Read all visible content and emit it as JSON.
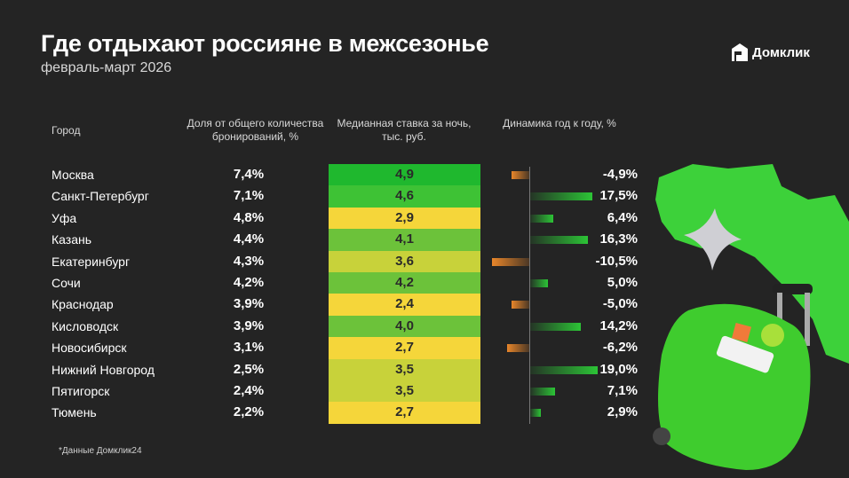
{
  "header": {
    "title": "Где отдыхают россияне в межсезонье",
    "subtitle": "февраль-март 2026",
    "logo": "Домклик"
  },
  "footnote": "*Данные Домклик24",
  "colors": {
    "background": "#242424",
    "positive": "#2cc436",
    "negative": "#e8862a",
    "rate_high": "#1fb82e",
    "rate_low": "#f5d63a"
  },
  "chart_data": {
    "type": "table",
    "columns": [
      "Город",
      "Доля от общего количества бронирований, %",
      "Медианная ставка за ночь, тыс. руб.",
      "Динамика год к году, %"
    ],
    "rows": [
      {
        "city": "Москва",
        "share": "7,4%",
        "rate": "4,9",
        "dynamics": "-4,9%",
        "dyn_value": -4.9
      },
      {
        "city": "Санкт-Петербург",
        "share": "7,1%",
        "rate": "4,6",
        "dynamics": "17,5%",
        "dyn_value": 17.5
      },
      {
        "city": "Уфа",
        "share": "4,8%",
        "rate": "2,9",
        "dynamics": "6,4%",
        "dyn_value": 6.4
      },
      {
        "city": "Казань",
        "share": "4,4%",
        "rate": "4,1",
        "dynamics": "16,3%",
        "dyn_value": 16.3
      },
      {
        "city": "Екатеринбург",
        "share": "4,3%",
        "rate": "3,6",
        "dynamics": "-10,5%",
        "dyn_value": -10.5
      },
      {
        "city": "Сочи",
        "share": "4,2%",
        "rate": "4,2",
        "dynamics": "5,0%",
        "dyn_value": 5.0
      },
      {
        "city": "Краснодар",
        "share": "3,9%",
        "rate": "2,4",
        "dynamics": "-5,0%",
        "dyn_value": -5.0
      },
      {
        "city": "Кисловодск",
        "share": "3,9%",
        "rate": "4,0",
        "dynamics": "14,2%",
        "dyn_value": 14.2
      },
      {
        "city": "Новосибирск",
        "share": "3,1%",
        "rate": "2,7",
        "dynamics": "-6,2%",
        "dyn_value": -6.2
      },
      {
        "city": "Нижний Новгород",
        "share": "2,5%",
        "rate": "3,5",
        "dynamics": "19,0%",
        "dyn_value": 19.0
      },
      {
        "city": "Пятигорск",
        "share": "2,4%",
        "rate": "3,5",
        "dynamics": "7,1%",
        "dyn_value": 7.1
      },
      {
        "city": "Тюмень",
        "share": "2,2%",
        "rate": "2,7",
        "dynamics": "2,9%",
        "dyn_value": 2.9
      }
    ]
  }
}
